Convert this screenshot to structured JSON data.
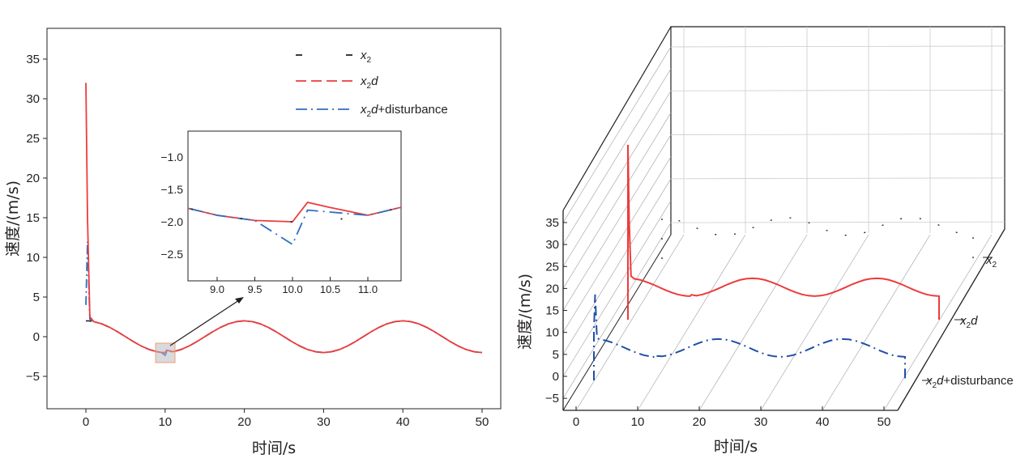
{
  "chart_data": [
    {
      "type": "line",
      "title": "",
      "xlabel": "时间/s",
      "ylabel": "速度/(m/s)",
      "xlim": [
        -5,
        52
      ],
      "ylim": [
        -9,
        39
      ],
      "xticks": [
        "0",
        "10",
        "20",
        "30",
        "40",
        "50"
      ],
      "yticks": [
        "−5",
        "0",
        "5",
        "10",
        "15",
        "20",
        "25",
        "30",
        "35"
      ],
      "legend": {
        "placement": "top-right",
        "entries": [
          "x2",
          "x2d",
          "x2d+disturbance"
        ]
      },
      "grid": false,
      "t": [
        0,
        0.2,
        0.5,
        1,
        2,
        3,
        4,
        5,
        6,
        7,
        8,
        9,
        9.5,
        10,
        10.2,
        10.5,
        11,
        12,
        13,
        14,
        15,
        16,
        17,
        18,
        19,
        20,
        21,
        22,
        23,
        24,
        25,
        26,
        27,
        28,
        29,
        30,
        31,
        32,
        33,
        34,
        35,
        36,
        37,
        38,
        39,
        40,
        41,
        42,
        43,
        44,
        45,
        46,
        47,
        48,
        49,
        50
      ],
      "series": [
        {
          "name": "x2",
          "color": "#231f20",
          "values": [
            2,
            1.99,
            1.98,
            1.9,
            1.62,
            1.18,
            0.62,
            0,
            -0.62,
            -1.18,
            -1.62,
            -1.9,
            -1.98,
            -2,
            -1.99,
            -1.98,
            -1.9,
            -1.62,
            -1.18,
            -0.62,
            0,
            0.62,
            1.18,
            1.62,
            1.9,
            2,
            1.9,
            1.62,
            1.18,
            0.62,
            0,
            -0.62,
            -1.18,
            -1.62,
            -1.9,
            -2,
            -1.9,
            -1.62,
            -1.18,
            -0.62,
            0,
            0.62,
            1.18,
            1.62,
            1.9,
            2,
            1.9,
            1.62,
            1.18,
            0.62,
            0,
            -0.62,
            -1.18,
            -1.62,
            -1.9,
            -2
          ]
        },
        {
          "name": "x2d",
          "color": "#ee3b3b",
          "values": [
            32,
            15,
            2.5,
            1.9,
            1.62,
            1.18,
            0.62,
            0,
            -0.62,
            -1.18,
            -1.62,
            -1.9,
            -1.98,
            -2,
            -1.7,
            -1.78,
            -1.9,
            -1.62,
            -1.18,
            -0.62,
            0,
            0.62,
            1.18,
            1.62,
            1.9,
            2,
            1.9,
            1.62,
            1.18,
            0.62,
            0,
            -0.62,
            -1.18,
            -1.62,
            -1.9,
            -2,
            -1.9,
            -1.62,
            -1.18,
            -0.62,
            0,
            0.62,
            1.18,
            1.62,
            1.9,
            2,
            1.9,
            1.62,
            1.18,
            0.62,
            0,
            -0.62,
            -1.18,
            -1.62,
            -1.9,
            -2
          ]
        },
        {
          "name": "x2d+disturbance",
          "color": "#2f6fc1",
          "values": [
            4,
            12,
            2.2,
            1.9,
            1.62,
            1.18,
            0.62,
            0,
            -0.62,
            -1.18,
            -1.62,
            -1.9,
            -1.98,
            -2.35,
            -1.82,
            -1.85,
            -1.9,
            -1.62,
            -1.18,
            -0.62,
            0,
            0.62,
            1.18,
            1.62,
            1.9,
            2,
            1.9,
            1.62,
            1.18,
            0.62,
            0,
            -0.62,
            -1.18,
            -1.62,
            -1.9,
            -2,
            -1.9,
            -1.62,
            -1.18,
            -0.62,
            0,
            0.62,
            1.18,
            1.62,
            1.9,
            2,
            1.9,
            1.62,
            1.18,
            0.62,
            0,
            -0.62,
            -1.18,
            -1.62,
            -1.9,
            -2
          ]
        }
      ],
      "inset": {
        "xlim": [
          8.6,
          11.45
        ],
        "ylim": [
          -2.9,
          -0.6
        ],
        "xticks": [
          "9.0",
          "9.5",
          "10.0",
          "10.5",
          "11.0"
        ],
        "yticks": [
          "−1.0",
          "−1.5",
          "−2.0",
          "−2.5"
        ]
      }
    },
    {
      "type": "line-3d-waterfall",
      "xlabel": "时间/s",
      "zlabel": "速度/(m/s)",
      "xticks": [
        "0",
        "10",
        "20",
        "30",
        "40",
        "50"
      ],
      "zticks": [
        "−5",
        "0",
        "5",
        "10",
        "15",
        "20",
        "25",
        "30",
        "35"
      ],
      "depth_labels": [
        "x2",
        "x2d",
        "x2d+disturbance"
      ],
      "data_source": "same series as chart 1"
    }
  ]
}
